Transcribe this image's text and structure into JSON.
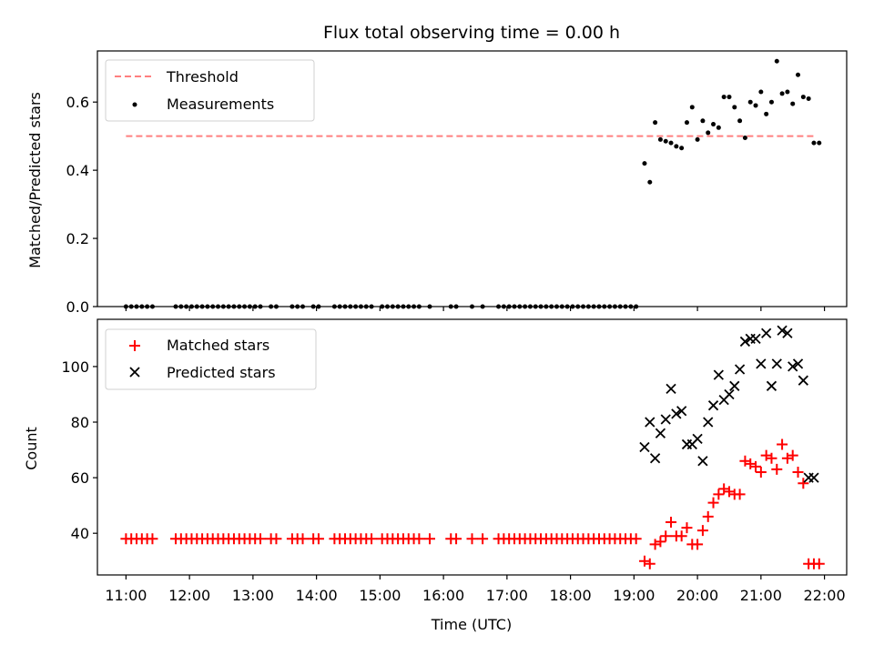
{
  "chart_data": [
    {
      "type": "scatter",
      "title": "Flux total observing time = 0.00 h",
      "ylabel": "Matched/Predicted stars",
      "xlabel": "",
      "xlim": [
        "10:33",
        "22:21"
      ],
      "ylim": [
        0,
        0.75
      ],
      "yticks": [
        0.0,
        0.2,
        0.4,
        0.6
      ],
      "ytick_labels": [
        "0.0",
        "0.2",
        "0.4",
        "0.6"
      ],
      "grid": false,
      "legend_position": "upper-left",
      "series": [
        {
          "name": "Threshold",
          "kind": "dashed-line",
          "color": "#ff7f7f",
          "x": [
            "11:00",
            "21:50"
          ],
          "y": [
            0.5,
            0.5
          ]
        },
        {
          "name": "Measurements",
          "kind": "dot",
          "color": "#000000",
          "x": [
            "11:00",
            "11:05",
            "11:10",
            "11:15",
            "11:20",
            "11:25",
            "11:47",
            "11:52",
            "11:57",
            "12:02",
            "12:07",
            "12:12",
            "12:17",
            "12:22",
            "12:27",
            "12:32",
            "12:37",
            "12:42",
            "12:47",
            "12:52",
            "12:57",
            "13:02",
            "13:07",
            "13:17",
            "13:22",
            "13:37",
            "13:42",
            "13:47",
            "13:57",
            "14:02",
            "14:17",
            "14:22",
            "14:27",
            "14:32",
            "14:37",
            "14:42",
            "14:47",
            "14:52",
            "15:02",
            "15:07",
            "15:12",
            "15:17",
            "15:22",
            "15:27",
            "15:32",
            "15:37",
            "15:47",
            "16:07",
            "16:12",
            "16:27",
            "16:37",
            "16:52",
            "16:57",
            "17:02",
            "17:07",
            "17:12",
            "17:17",
            "17:22",
            "17:27",
            "17:32",
            "17:37",
            "17:42",
            "17:47",
            "17:52",
            "17:57",
            "18:02",
            "18:07",
            "18:12",
            "18:17",
            "18:22",
            "18:27",
            "18:32",
            "18:37",
            "18:42",
            "18:47",
            "18:52",
            "18:57",
            "19:02",
            "19:10",
            "19:15",
            "19:20",
            "19:25",
            "19:30",
            "19:35",
            "19:40",
            "19:45",
            "19:50",
            "19:55",
            "20:00",
            "20:05",
            "20:10",
            "20:15",
            "20:20",
            "20:25",
            "20:30",
            "20:35",
            "20:40",
            "20:45",
            "20:50",
            "20:55",
            "21:00",
            "21:05",
            "21:10",
            "21:15",
            "21:20",
            "21:25",
            "21:30",
            "21:35",
            "21:40",
            "21:45",
            "21:50",
            "21:55"
          ],
          "y": [
            0,
            0,
            0,
            0,
            0,
            0,
            0,
            0,
            0,
            0,
            0,
            0,
            0,
            0,
            0,
            0,
            0,
            0,
            0,
            0,
            0,
            0,
            0,
            0,
            0,
            0,
            0,
            0,
            0,
            0,
            0,
            0,
            0,
            0,
            0,
            0,
            0,
            0,
            0,
            0,
            0,
            0,
            0,
            0,
            0,
            0,
            0,
            0,
            0,
            0,
            0,
            0,
            0,
            0,
            0,
            0,
            0,
            0,
            0,
            0,
            0,
            0,
            0,
            0,
            0,
            0,
            0,
            0,
            0,
            0,
            0,
            0,
            0,
            0,
            0,
            0,
            0,
            0,
            0.42,
            0.365,
            0.54,
            0.49,
            0.485,
            0.48,
            0.47,
            0.465,
            0.54,
            0.585,
            0.49,
            0.545,
            0.51,
            0.535,
            0.525,
            0.615,
            0.615,
            0.585,
            0.545,
            0.495,
            0.6,
            0.59,
            0.63,
            0.565,
            0.6,
            0.72,
            0.625,
            0.63,
            0.595,
            0.68,
            0.615,
            0.61,
            0.48,
            0.48
          ]
        }
      ]
    },
    {
      "type": "scatter",
      "title": "",
      "ylabel": "Count",
      "xlabel": "Time (UTC)",
      "xlim": [
        "10:33",
        "22:21"
      ],
      "ylim": [
        25,
        117
      ],
      "yticks": [
        40,
        60,
        80,
        100
      ],
      "ytick_labels": [
        "40",
        "60",
        "80",
        "100"
      ],
      "xticks": [
        "11:00",
        "12:00",
        "13:00",
        "14:00",
        "15:00",
        "16:00",
        "17:00",
        "18:00",
        "19:00",
        "20:00",
        "21:00",
        "22:00"
      ],
      "grid": false,
      "legend_position": "upper-left",
      "series": [
        {
          "name": "Matched stars",
          "kind": "plus",
          "color": "#ff0000",
          "x": [
            "11:00",
            "11:05",
            "11:10",
            "11:15",
            "11:20",
            "11:25",
            "11:47",
            "11:52",
            "11:57",
            "12:02",
            "12:07",
            "12:12",
            "12:17",
            "12:22",
            "12:27",
            "12:32",
            "12:37",
            "12:42",
            "12:47",
            "12:52",
            "12:57",
            "13:02",
            "13:07",
            "13:17",
            "13:22",
            "13:37",
            "13:42",
            "13:47",
            "13:57",
            "14:02",
            "14:17",
            "14:22",
            "14:27",
            "14:32",
            "14:37",
            "14:42",
            "14:47",
            "14:52",
            "15:02",
            "15:07",
            "15:12",
            "15:17",
            "15:22",
            "15:27",
            "15:32",
            "15:37",
            "15:47",
            "16:07",
            "16:12",
            "16:27",
            "16:37",
            "16:52",
            "16:57",
            "17:02",
            "17:07",
            "17:12",
            "17:17",
            "17:22",
            "17:27",
            "17:32",
            "17:37",
            "17:42",
            "17:47",
            "17:52",
            "17:57",
            "18:02",
            "18:07",
            "18:12",
            "18:17",
            "18:22",
            "18:27",
            "18:32",
            "18:37",
            "18:42",
            "18:47",
            "18:52",
            "18:57",
            "19:02",
            "19:10",
            "19:15",
            "19:20",
            "19:25",
            "19:30",
            "19:35",
            "19:40",
            "19:45",
            "19:50",
            "19:55",
            "20:00",
            "20:05",
            "20:10",
            "20:15",
            "20:20",
            "20:25",
            "20:30",
            "20:35",
            "20:40",
            "20:45",
            "20:50",
            "20:55",
            "21:00",
            "21:05",
            "21:10",
            "21:15",
            "21:20",
            "21:25",
            "21:30",
            "21:35",
            "21:40",
            "21:45",
            "21:50",
            "21:55"
          ],
          "y": [
            38,
            38,
            38,
            38,
            38,
            38,
            38,
            38,
            38,
            38,
            38,
            38,
            38,
            38,
            38,
            38,
            38,
            38,
            38,
            38,
            38,
            38,
            38,
            38,
            38,
            38,
            38,
            38,
            38,
            38,
            38,
            38,
            38,
            38,
            38,
            38,
            38,
            38,
            38,
            38,
            38,
            38,
            38,
            38,
            38,
            38,
            38,
            38,
            38,
            38,
            38,
            38,
            38,
            38,
            38,
            38,
            38,
            38,
            38,
            38,
            38,
            38,
            38,
            38,
            38,
            38,
            38,
            38,
            38,
            38,
            38,
            38,
            38,
            38,
            38,
            38,
            38,
            38,
            30,
            29,
            36,
            37,
            39,
            44,
            39,
            39,
            42,
            36,
            36,
            41,
            46,
            51,
            54,
            56,
            55,
            54,
            54,
            66,
            65,
            64,
            62,
            68,
            67,
            63,
            72,
            67,
            68,
            62,
            58,
            29,
            29,
            29
          ]
        },
        {
          "name": "Predicted stars",
          "kind": "cross",
          "color": "#000000",
          "x": [
            "19:10",
            "19:15",
            "19:20",
            "19:25",
            "19:30",
            "19:35",
            "19:40",
            "19:45",
            "19:50",
            "19:55",
            "20:00",
            "20:05",
            "20:10",
            "20:15",
            "20:20",
            "20:25",
            "20:30",
            "20:35",
            "20:40",
            "20:45",
            "20:50",
            "20:55",
            "21:00",
            "21:05",
            "21:10",
            "21:15",
            "21:20",
            "21:25",
            "21:30",
            "21:35",
            "21:40",
            "21:45",
            "21:50"
          ],
          "y": [
            71,
            80,
            67,
            76,
            81,
            92,
            83,
            84,
            72,
            72,
            74,
            66,
            80,
            86,
            97,
            88,
            90,
            93,
            99,
            109,
            110,
            110,
            101,
            112,
            93,
            101,
            113,
            112,
            100,
            101,
            95,
            60,
            60
          ]
        }
      ]
    }
  ]
}
